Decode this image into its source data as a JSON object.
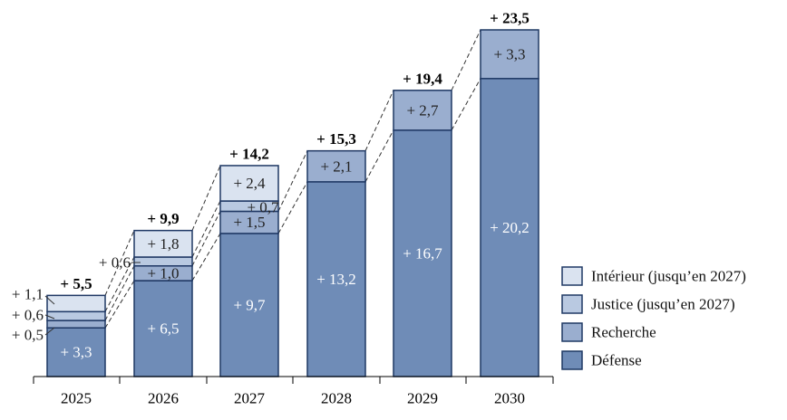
{
  "chart_data": {
    "type": "bar",
    "stacked": true,
    "categories": [
      "2025",
      "2026",
      "2027",
      "2028",
      "2029",
      "2030"
    ],
    "series": [
      {
        "name": "Défense",
        "values": [
          3.3,
          6.5,
          9.7,
          13.2,
          16.7,
          20.2
        ],
        "labels": [
          "+ 3,3",
          "+ 6,5",
          "+ 9,7",
          "+ 13,2",
          "+ 16,7",
          "+ 20,2"
        ],
        "color": "#6f8cb7"
      },
      {
        "name": "Recherche",
        "values": [
          0.5,
          1.0,
          1.5,
          2.1,
          2.7,
          3.3
        ],
        "labels": [
          "+ 0,5",
          "+ 1,0",
          "+ 1,5",
          "+ 2,1",
          "+ 2,7",
          "+ 3,3"
        ],
        "color": "#9aaecf"
      },
      {
        "name": "Justice (jusqu’en 2027)",
        "values": [
          0.6,
          0.6,
          0.7,
          null,
          null,
          null
        ],
        "labels": [
          "+ 0,6",
          "+ 0,6",
          "+ 0,7",
          "",
          "",
          ""
        ],
        "color": "#b9c9e1"
      },
      {
        "name": "Intérieur (jusqu’en 2027)",
        "values": [
          1.1,
          1.8,
          2.4,
          null,
          null,
          null
        ],
        "labels": [
          "+ 1,1",
          "+ 1,8",
          "+ 2,4",
          "",
          "",
          ""
        ],
        "color": "#dae3f0"
      }
    ],
    "totals": [
      5.5,
      9.9,
      14.2,
      15.3,
      19.4,
      23.5
    ],
    "total_labels": [
      "+ 5,5",
      "+ 9,9",
      "+ 14,2",
      "+ 15,3",
      "+ 19,4",
      "+ 23,5"
    ],
    "legend_order": [
      "Intérieur (jusqu’en 2027)",
      "Justice (jusqu’en 2027)",
      "Recherche",
      "Défense"
    ],
    "legend_position": "right",
    "grid": false,
    "title": "",
    "xlabel": "",
    "ylabel": "",
    "ylim": [
      0,
      23.5
    ]
  }
}
